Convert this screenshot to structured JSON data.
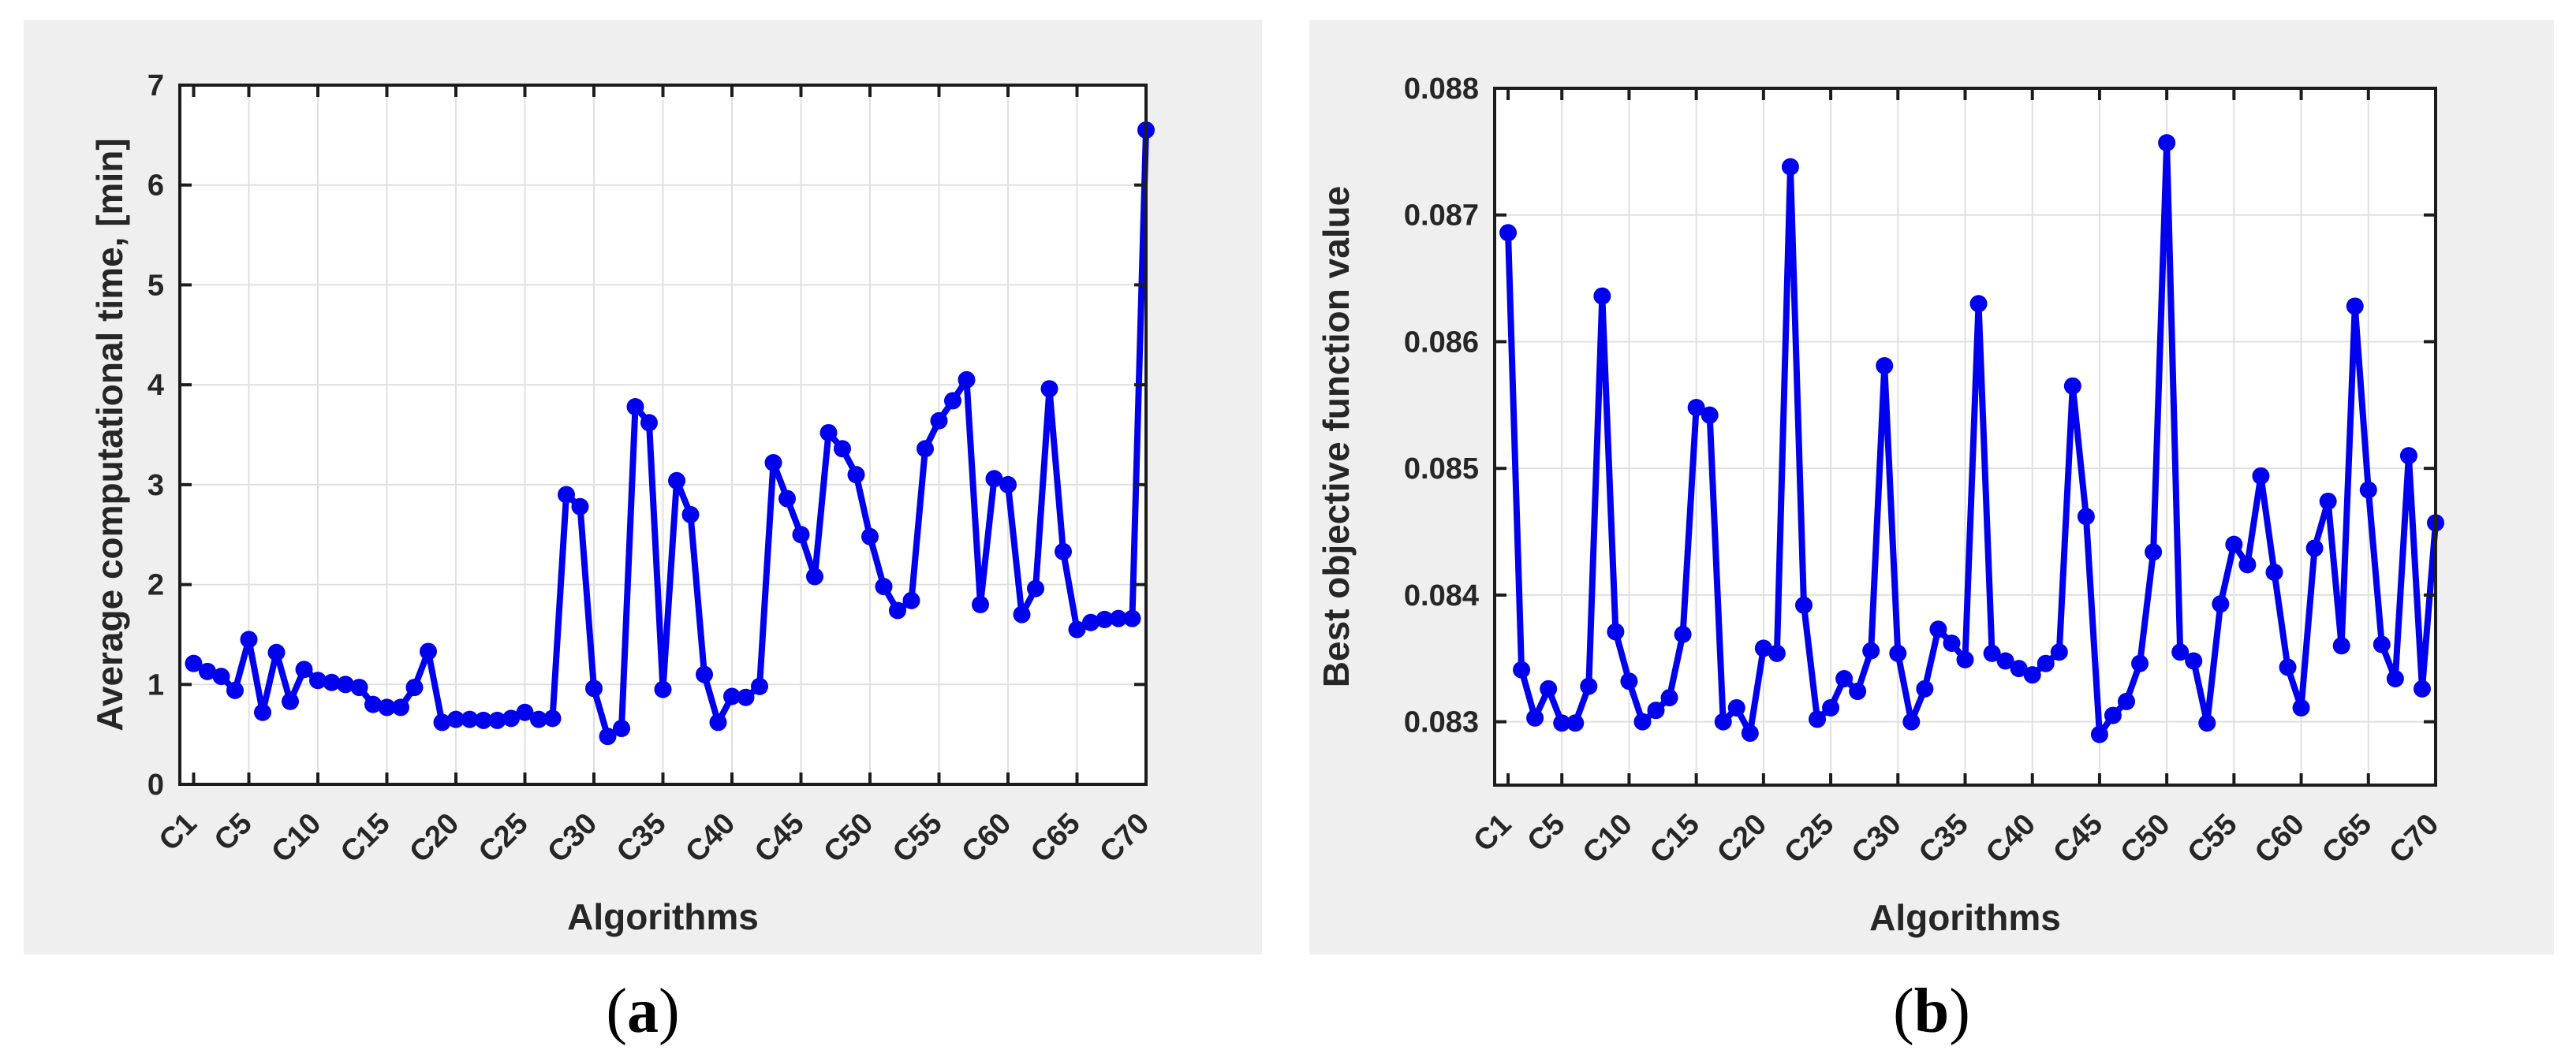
{
  "page": {
    "background": "#ffffff",
    "panel_background": "#efefef",
    "paren_open": "(",
    "paren_close": ")"
  },
  "colors": {
    "line": "#0000ee",
    "marker": "#0000ee",
    "axis_box": "#1c1c1c",
    "grid": "#e0e0e0",
    "text": "#262626"
  },
  "chart_data": [
    {
      "id": "a",
      "type": "line",
      "caption": "(a)",
      "caption_parts": [
        "(",
        "a",
        ")"
      ],
      "xlabel": "Algorithms",
      "ylabel": "Average computational time, [min]",
      "marker": "filled-circle",
      "grid": true,
      "legend": "none",
      "n_points": 70,
      "xlim": [
        0,
        70
      ],
      "ylim": [
        0,
        7
      ],
      "y_ticks": [
        0,
        1,
        2,
        3,
        4,
        5,
        6,
        7
      ],
      "y_tick_labels": [
        "0",
        "1",
        "2",
        "3",
        "4",
        "5",
        "6",
        "7"
      ],
      "x_tick_indices": [
        1,
        5,
        10,
        15,
        20,
        25,
        30,
        35,
        40,
        45,
        50,
        55,
        60,
        65,
        70
      ],
      "x_tick_labels": [
        "C1",
        "C5",
        "C10",
        "C15",
        "C20",
        "C25",
        "C30",
        "C35",
        "C40",
        "C45",
        "C50",
        "C55",
        "C60",
        "C65",
        "C70"
      ],
      "values": [
        1.21,
        1.13,
        1.08,
        0.94,
        1.45,
        0.72,
        1.32,
        0.83,
        1.15,
        1.04,
        1.02,
        1.0,
        0.97,
        0.8,
        0.77,
        0.77,
        0.97,
        1.33,
        0.62,
        0.65,
        0.65,
        0.64,
        0.64,
        0.66,
        0.72,
        0.65,
        0.66,
        2.9,
        2.78,
        0.96,
        0.48,
        0.56,
        3.78,
        3.62,
        0.95,
        3.04,
        2.7,
        1.1,
        0.62,
        0.88,
        0.87,
        0.98,
        3.22,
        2.86,
        2.5,
        2.08,
        3.52,
        3.36,
        3.1,
        2.48,
        1.98,
        1.74,
        1.84,
        3.36,
        3.64,
        3.84,
        4.05,
        1.8,
        3.06,
        3.0,
        1.7,
        1.96,
        3.96,
        2.33,
        1.55,
        1.62,
        1.65,
        1.66,
        1.66,
        6.55
      ]
    },
    {
      "id": "b",
      "type": "line",
      "caption": "(b)",
      "caption_parts": [
        "(",
        "b",
        ")"
      ],
      "xlabel": "Algorithms",
      "ylabel": "Best objective function value",
      "marker": "filled-circle",
      "grid": true,
      "legend": "none",
      "n_points": 70,
      "xlim": [
        0,
        70
      ],
      "ylim": [
        0.0825,
        0.088
      ],
      "y_ticks": [
        0.083,
        0.084,
        0.085,
        0.086,
        0.087,
        0.088
      ],
      "y_tick_labels": [
        "0.083",
        "0.084",
        "0.085",
        "0.086",
        "0.087",
        "0.088"
      ],
      "x_tick_indices": [
        1,
        5,
        10,
        15,
        20,
        25,
        30,
        35,
        40,
        45,
        50,
        55,
        60,
        65,
        70
      ],
      "x_tick_labels": [
        "C1",
        "C5",
        "C10",
        "C15",
        "C20",
        "C25",
        "C30",
        "C35",
        "C40",
        "C45",
        "C50",
        "C55",
        "C60",
        "C65",
        "C70"
      ],
      "values": [
        0.08686,
        0.08341,
        0.08303,
        0.08326,
        0.08299,
        0.08299,
        0.08328,
        0.08636,
        0.08371,
        0.08332,
        0.083,
        0.08309,
        0.08319,
        0.08369,
        0.08548,
        0.08542,
        0.083,
        0.08311,
        0.08291,
        0.08358,
        0.08354,
        0.08738,
        0.08392,
        0.08302,
        0.08311,
        0.08334,
        0.08324,
        0.08356,
        0.08581,
        0.08354,
        0.083,
        0.08326,
        0.08373,
        0.08362,
        0.08349,
        0.0863,
        0.08354,
        0.08348,
        0.08342,
        0.08337,
        0.08346,
        0.08355,
        0.08565,
        0.08462,
        0.0829,
        0.08305,
        0.08316,
        0.08346,
        0.08434,
        0.08757,
        0.08355,
        0.08348,
        0.08299,
        0.08393,
        0.0844,
        0.08424,
        0.08494,
        0.08418,
        0.08343,
        0.08311,
        0.08437,
        0.08474,
        0.0836,
        0.08628,
        0.08483,
        0.08361,
        0.08334,
        0.0851,
        0.08326,
        0.08457
      ]
    }
  ]
}
